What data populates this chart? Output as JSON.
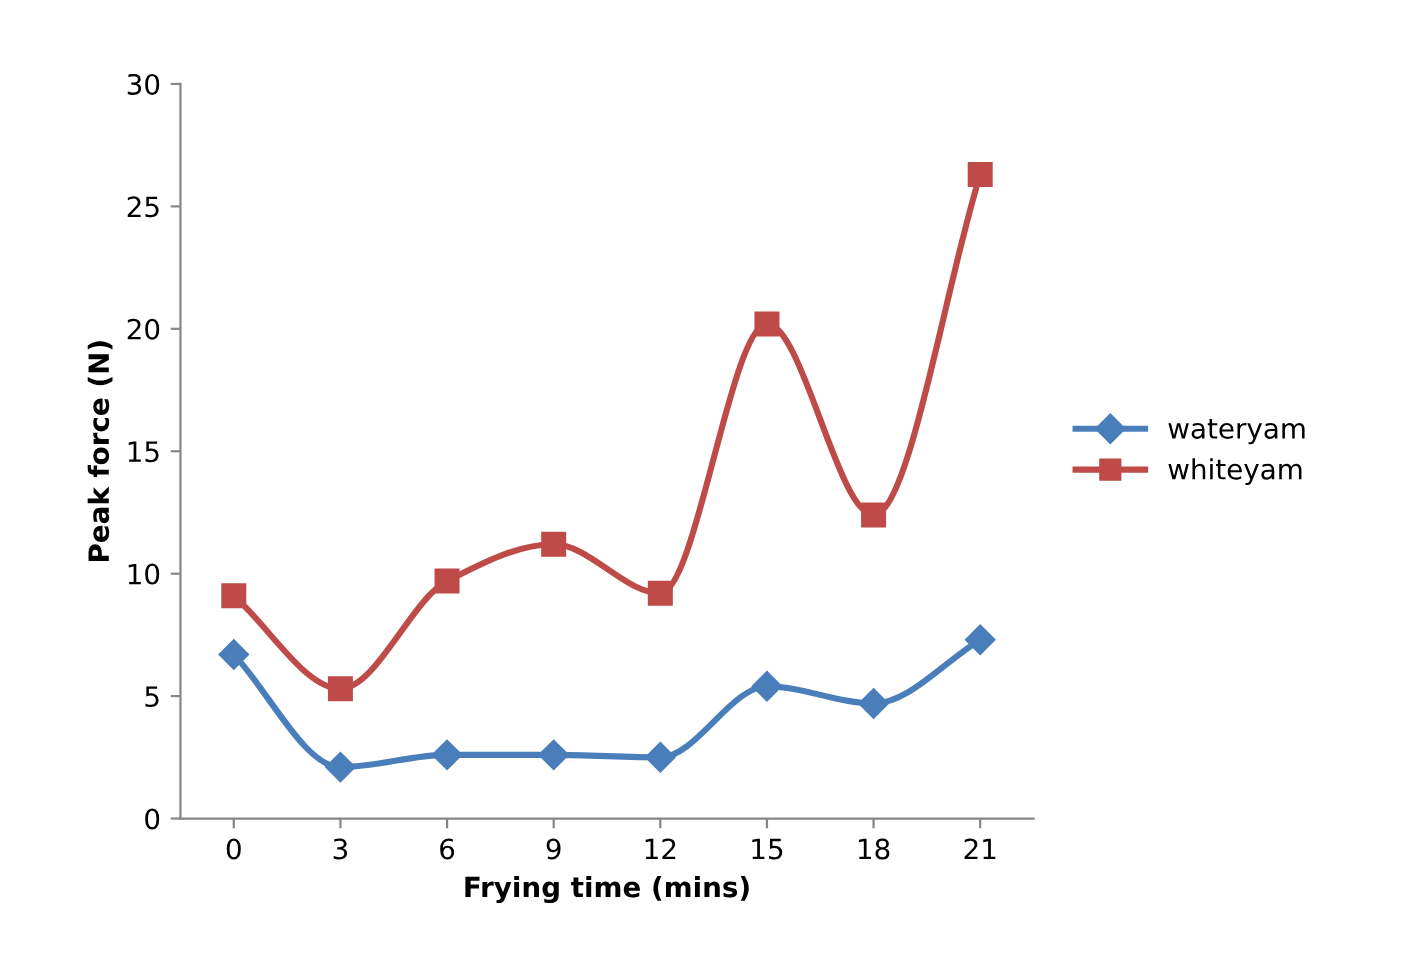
{
  "chart_data": {
    "type": "line",
    "xlabel": "Frying time (mins)",
    "ylabel": "Peak force (N)",
    "categories": [
      "0",
      "3",
      "6",
      "9",
      "12",
      "15",
      "18",
      "21"
    ],
    "series": [
      {
        "name": "wateryam",
        "color": "#4a7ebb",
        "marker": "diamond",
        "values": [
          6.7,
          2.1,
          2.6,
          2.6,
          2.5,
          5.4,
          4.7,
          7.3
        ]
      },
      {
        "name": "whiteyam",
        "color": "#be4b48",
        "marker": "square",
        "values": [
          9.1,
          5.3,
          9.7,
          11.2,
          9.2,
          20.2,
          12.4,
          26.3
        ]
      }
    ],
    "ylim": [
      0,
      30
    ],
    "yticks": [
      0,
      5,
      10,
      15,
      20,
      25,
      30
    ],
    "grid": false,
    "legend": "right",
    "line_style": "solid"
  }
}
